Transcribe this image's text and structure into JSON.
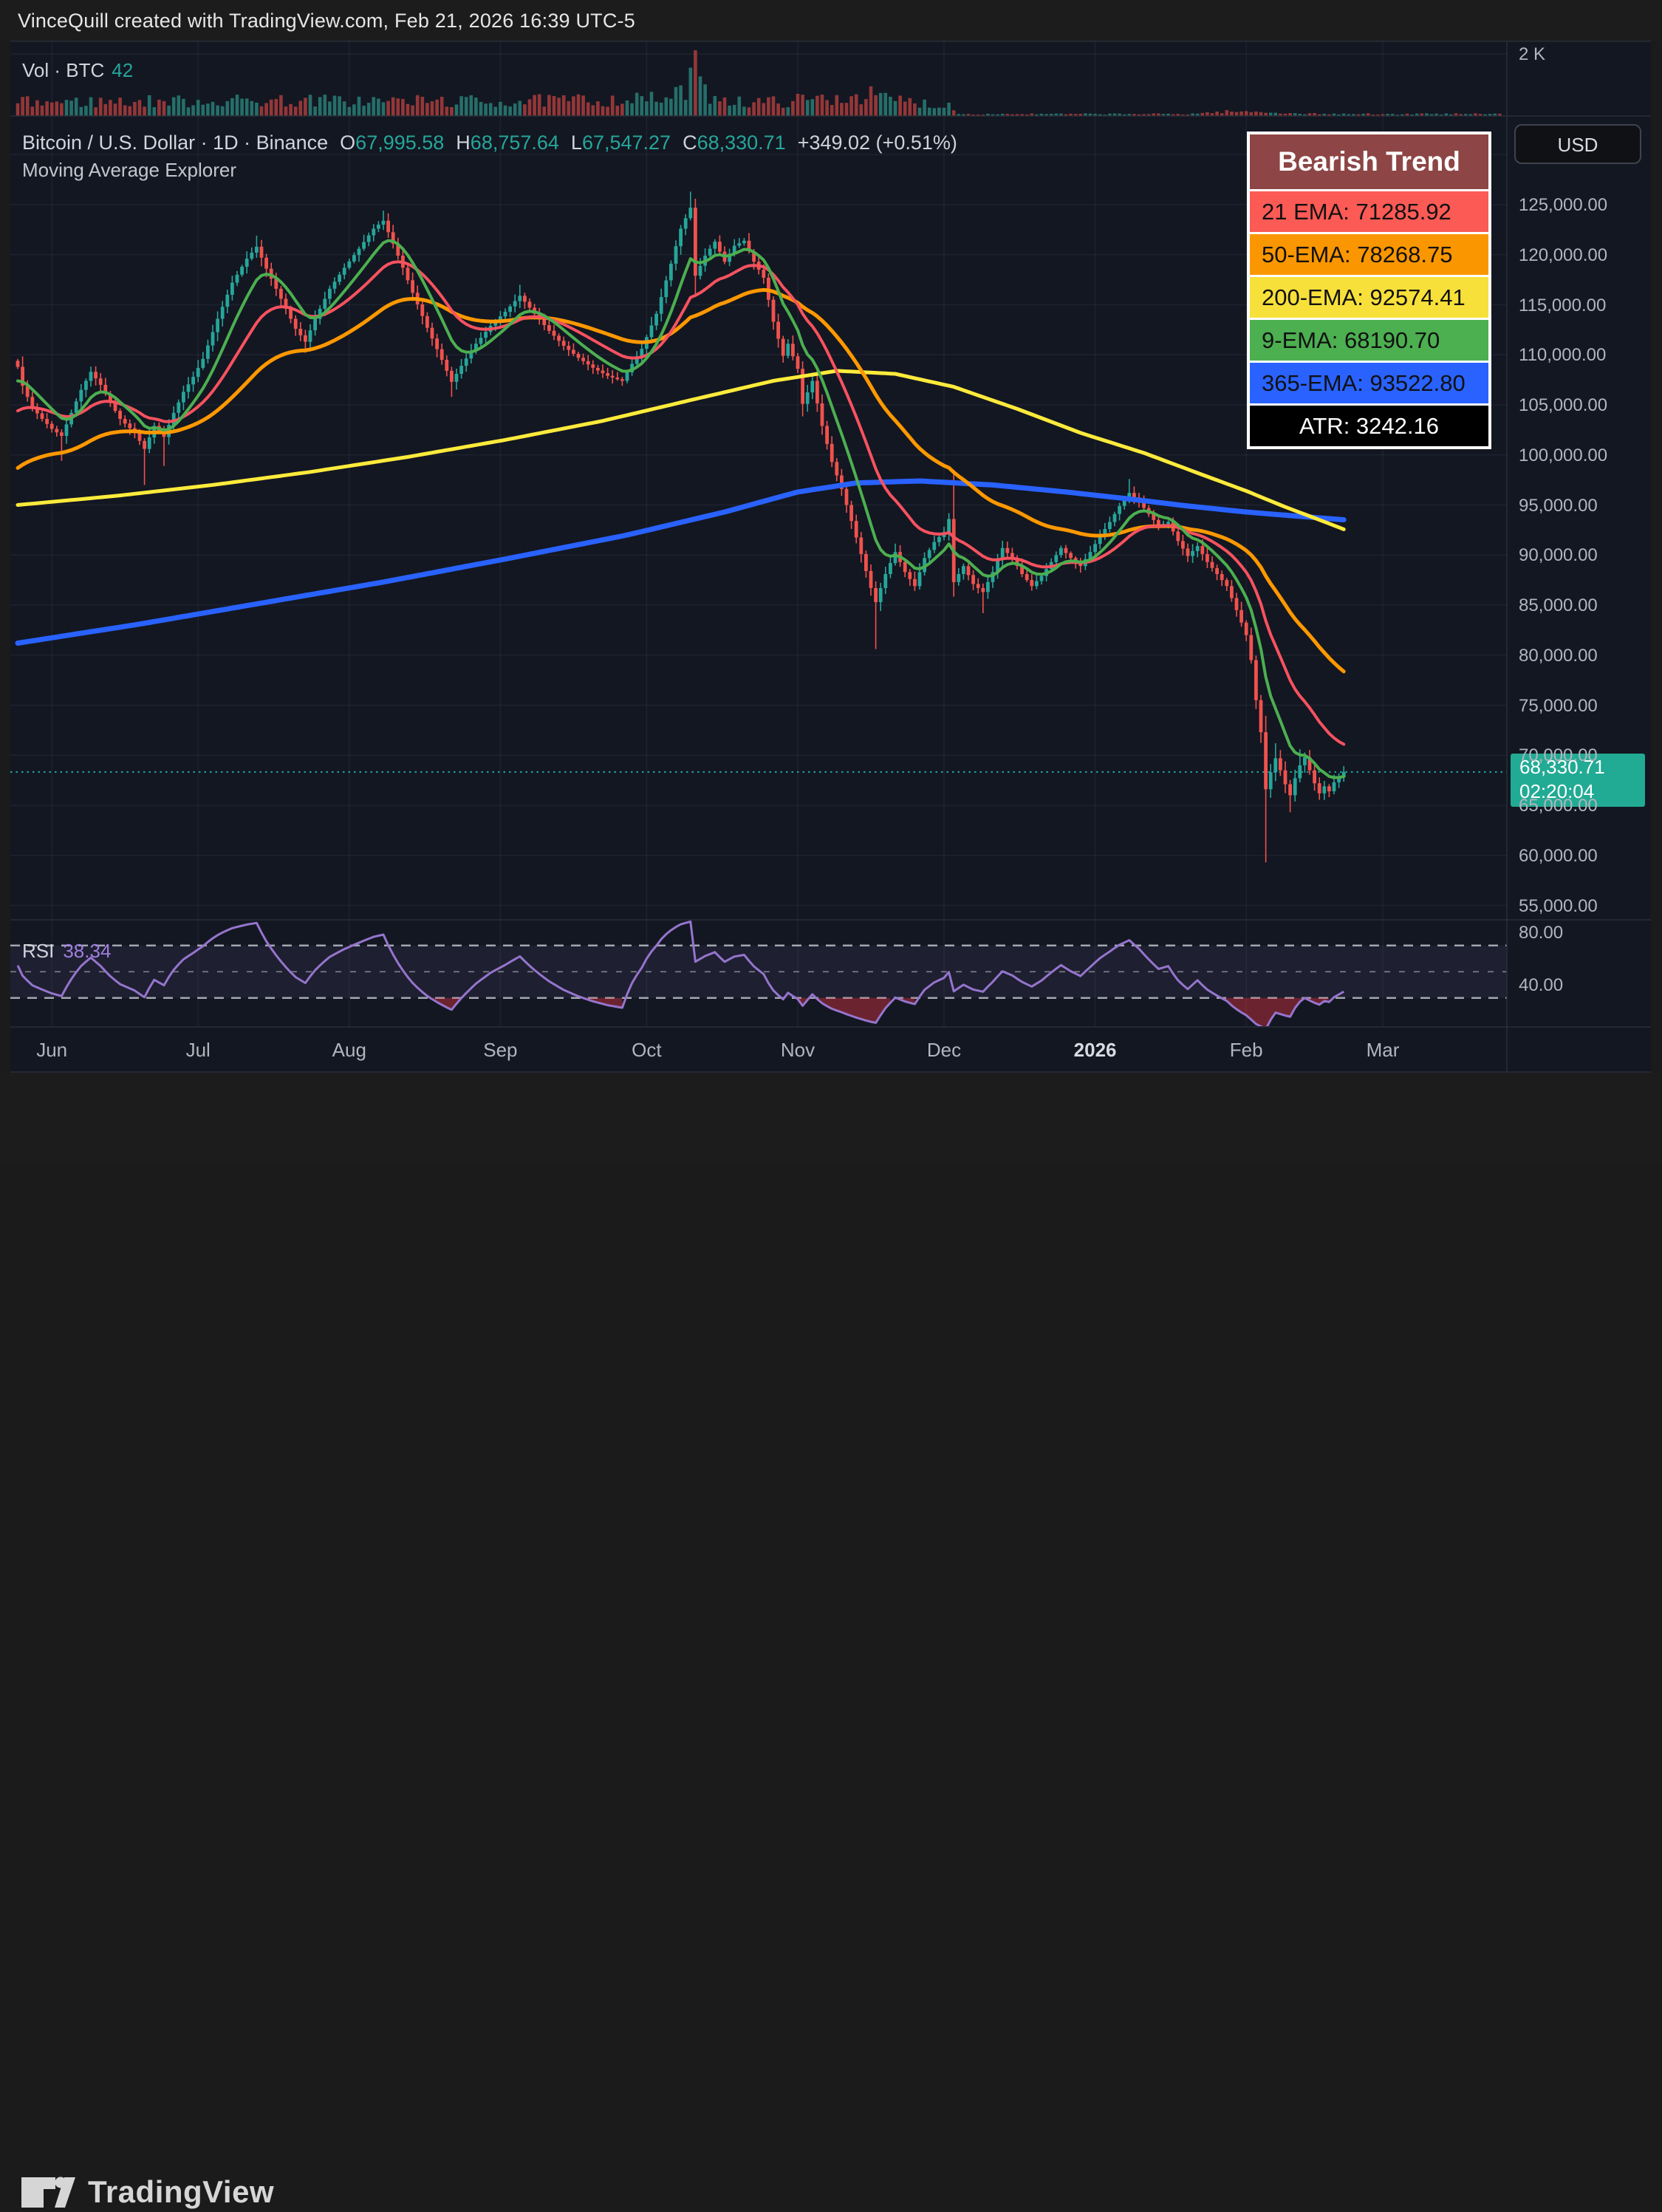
{
  "header": {
    "title": "VinceQuill created with TradingView.com, Feb 21, 2026 16:39 UTC-5"
  },
  "volume_pane": {
    "label": "Vol · BTC",
    "value": "42",
    "scale_label": "2 K"
  },
  "main_pane": {
    "title": "Bitcoin / U.S. Dollar · 1D · Binance",
    "ohlc": {
      "o_label": "O",
      "o": "67,995.58",
      "h_label": "H",
      "h": "68,757.64",
      "l_label": "L",
      "l": "67,547.27",
      "c_label": "C",
      "c": "68,330.71",
      "change": "+349.02 (+0.51%)"
    },
    "indicator_title": "Moving Average Explorer"
  },
  "legend_box": {
    "header": {
      "label": "Bearish Trend",
      "bg": "#8d4545",
      "fg": "#ffffff"
    },
    "rows": [
      {
        "label": "21 EMA: 71285.92",
        "bg": "#fb5a55",
        "fg": "#111111"
      },
      {
        "label": "50-EMA: 78268.75",
        "bg": "#fa9600",
        "fg": "#111111"
      },
      {
        "label": "200-EMA: 92574.41",
        "bg": "#f8e03a",
        "fg": "#111111"
      },
      {
        "label": "9-EMA: 68190.70",
        "bg": "#4caf50",
        "fg": "#111111"
      },
      {
        "label": "365-EMA: 93522.80",
        "bg": "#2962ff",
        "fg": "#111111"
      },
      {
        "label": "ATR: 3242.16",
        "bg": "#000000",
        "fg": "#ffffff"
      }
    ]
  },
  "price_axis": {
    "currency_button": "USD",
    "ticks": [
      {
        "text": "125,000.00",
        "value": 125000
      },
      {
        "text": "120,000.00",
        "value": 120000
      },
      {
        "text": "115,000.00",
        "value": 115000
      },
      {
        "text": "110,000.00",
        "value": 110000
      },
      {
        "text": "105,000.00",
        "value": 105000
      },
      {
        "text": "100,000.00",
        "value": 100000
      },
      {
        "text": "95,000.00",
        "value": 95000
      },
      {
        "text": "90,000.00",
        "value": 90000
      },
      {
        "text": "85,000.00",
        "value": 85000
      },
      {
        "text": "80,000.00",
        "value": 80000
      },
      {
        "text": "75,000.00",
        "value": 75000
      },
      {
        "text": "70,000.00",
        "value": 70000
      },
      {
        "text": "65,000.00",
        "value": 65000
      },
      {
        "text": "60,000.00",
        "value": 60000
      },
      {
        "text": "55,000.00",
        "value": 55000
      }
    ],
    "badge": {
      "price": "68,330.71",
      "time": "02:20:04"
    }
  },
  "rsi_pane": {
    "label": "RSI",
    "value": "38.34",
    "axis_labels": [
      {
        "text": "80.00",
        "value": 80
      },
      {
        "text": "40.00",
        "value": 40
      }
    ],
    "band_levels": [
      70,
      50,
      30
    ]
  },
  "time_axis": {
    "months": [
      {
        "label": "Jun",
        "day": 7
      },
      {
        "label": "Jul",
        "day": 37
      },
      {
        "label": "Aug",
        "day": 68
      },
      {
        "label": "Sep",
        "day": 99
      },
      {
        "label": "Oct",
        "day": 129
      },
      {
        "label": "Nov",
        "day": 160
      },
      {
        "label": "Dec",
        "day": 190
      },
      {
        "label": "2026",
        "day": 221,
        "bold": true
      },
      {
        "label": "Feb",
        "day": 252
      },
      {
        "label": "Mar",
        "day": 280
      }
    ]
  },
  "footer": {
    "brand": "TradingView"
  },
  "colors": {
    "chart_bg": "#131722",
    "frame_bg": "#1c1c1c",
    "border": "#2a2e39",
    "grid": "rgba(240,243,250,0.055)",
    "text": "#b2b5be",
    "text_bright": "#d1d4dc",
    "candle_up": "#26a69a",
    "candle_down": "#f0524d",
    "vol_up": "rgba(42,126,118,0.85)",
    "vol_down": "rgba(163,59,59,0.9)",
    "ema9": "#4caf50",
    "ema21": "#f7525f",
    "ema50": "#ff9800",
    "ema200": "#ffeb3b",
    "ema365": "#2962ff",
    "rsi_line": "#9575cd",
    "rsi_band": "rgba(149,117,205,0.09)",
    "rsi_dash": "rgba(210,213,222,0.75)",
    "rsi_oversold": "rgba(242,54,69,0.4)",
    "badge_bg": "#22ab94",
    "price_dotted": "#26a69a"
  },
  "chart_data": {
    "type": "candlestick",
    "title": "Bitcoin / U.S. Dollar · 1D · Binance",
    "timeframe": "1D",
    "exchange": "Binance",
    "last_close": 68330.71,
    "days_total": 272,
    "price_range_visible": [
      53850,
      133600
    ],
    "grid_price_step": 5000,
    "close_waypoints": [
      [
        0,
        108800
      ],
      [
        1,
        106900
      ],
      [
        3,
        104700
      ],
      [
        5,
        103600
      ],
      [
        7,
        102600
      ],
      [
        9,
        101900
      ],
      [
        11,
        104200
      ],
      [
        13,
        106500
      ],
      [
        15,
        108300
      ],
      [
        17,
        107000
      ],
      [
        19,
        105200
      ],
      [
        21,
        103600
      ],
      [
        24,
        102200
      ],
      [
        26,
        100600
      ],
      [
        28,
        102900
      ],
      [
        30,
        101800
      ],
      [
        32,
        104200
      ],
      [
        34,
        106300
      ],
      [
        36,
        107800
      ],
      [
        38,
        109600
      ],
      [
        41,
        113600
      ],
      [
        44,
        117200
      ],
      [
        47,
        119600
      ],
      [
        49,
        120800
      ],
      [
        51,
        118600
      ],
      [
        54,
        115600
      ],
      [
        57,
        112600
      ],
      [
        59,
        111300
      ],
      [
        61,
        113600
      ],
      [
        64,
        116600
      ],
      [
        67,
        118700
      ],
      [
        70,
        120600
      ],
      [
        73,
        122600
      ],
      [
        75,
        123400
      ],
      [
        77,
        121100
      ],
      [
        79,
        118700
      ],
      [
        81,
        116200
      ],
      [
        84,
        112700
      ],
      [
        87,
        109500
      ],
      [
        89,
        107300
      ],
      [
        91,
        108900
      ],
      [
        94,
        111100
      ],
      [
        97,
        112900
      ],
      [
        100,
        114300
      ],
      [
        103,
        115900
      ],
      [
        106,
        114100
      ],
      [
        109,
        112400
      ],
      [
        112,
        110900
      ],
      [
        115,
        109700
      ],
      [
        118,
        108700
      ],
      [
        121,
        107900
      ],
      [
        124,
        107400
      ],
      [
        126,
        109100
      ],
      [
        128,
        110600
      ],
      [
        131,
        114100
      ],
      [
        134,
        119100
      ],
      [
        136,
        122600
      ],
      [
        138,
        124700
      ],
      [
        139,
        117900
      ],
      [
        141,
        119900
      ],
      [
        143,
        121300
      ],
      [
        145,
        119300
      ],
      [
        147,
        120900
      ],
      [
        149,
        121400
      ],
      [
        151,
        119300
      ],
      [
        153,
        117700
      ],
      [
        155,
        113300
      ],
      [
        157,
        109900
      ],
      [
        158,
        111100
      ],
      [
        160,
        108600
      ],
      [
        161,
        105100
      ],
      [
        163,
        107400
      ],
      [
        165,
        102900
      ],
      [
        167,
        99300
      ],
      [
        169,
        96600
      ],
      [
        171,
        93400
      ],
      [
        173,
        90100
      ],
      [
        175,
        86700
      ],
      [
        176,
        85300
      ],
      [
        178,
        88100
      ],
      [
        180,
        90300
      ],
      [
        182,
        88300
      ],
      [
        184,
        86900
      ],
      [
        186,
        89700
      ],
      [
        188,
        91300
      ],
      [
        190,
        92300
      ],
      [
        191,
        93600
      ],
      [
        192,
        87300
      ],
      [
        194,
        88900
      ],
      [
        196,
        87100
      ],
      [
        198,
        86300
      ],
      [
        200,
        88300
      ],
      [
        202,
        90700
      ],
      [
        204,
        89700
      ],
      [
        206,
        88100
      ],
      [
        208,
        86900
      ],
      [
        210,
        87900
      ],
      [
        212,
        89300
      ],
      [
        214,
        90700
      ],
      [
        216,
        89700
      ],
      [
        218,
        88900
      ],
      [
        220,
        90300
      ],
      [
        222,
        91900
      ],
      [
        224,
        93300
      ],
      [
        226,
        94900
      ],
      [
        228,
        96200
      ],
      [
        230,
        95300
      ],
      [
        232,
        94100
      ],
      [
        234,
        92900
      ],
      [
        236,
        93300
      ],
      [
        238,
        91400
      ],
      [
        240,
        89900
      ],
      [
        242,
        90900
      ],
      [
        244,
        89300
      ],
      [
        246,
        88100
      ],
      [
        248,
        86900
      ],
      [
        250,
        84500
      ],
      [
        252,
        82000
      ],
      [
        253,
        79500
      ],
      [
        254,
        75500
      ],
      [
        255,
        72300
      ],
      [
        256,
        66600
      ],
      [
        257,
        68300
      ],
      [
        258,
        69700
      ],
      [
        259,
        68500
      ],
      [
        260,
        67100
      ],
      [
        261,
        66000
      ],
      [
        262,
        67700
      ],
      [
        263,
        69000
      ],
      [
        264,
        69800
      ],
      [
        265,
        68500
      ],
      [
        266,
        67200
      ],
      [
        267,
        66200
      ],
      [
        268,
        66900
      ],
      [
        269,
        66400
      ],
      [
        270,
        67300
      ],
      [
        271,
        67800
      ],
      [
        272,
        68330
      ]
    ],
    "wick_low_overrides": {
      "9": 99400,
      "26": 97000,
      "30": 98900,
      "59": 110200,
      "89": 105800,
      "124": 106900,
      "176": 80600,
      "198": 84200,
      "256": 59300,
      "261": 64300
    },
    "wick_high_overrides": {
      "49": 121900,
      "75": 124400,
      "103": 117000,
      "138": 126300,
      "192": 98500,
      "228": 97600,
      "258": 71200,
      "263": 70600
    },
    "ema_computed": {
      "ema9": {
        "period": 9,
        "seed": 107400,
        "last": 68190.7
      },
      "ema21": {
        "period": 21,
        "seed": 104400,
        "last": 71285.92
      },
      "ema50": {
        "period": 50,
        "seed": 98700,
        "last": 78268.75
      }
    },
    "ema200_waypoints": [
      [
        0,
        95000
      ],
      [
        20,
        95900
      ],
      [
        40,
        97000
      ],
      [
        60,
        98300
      ],
      [
        80,
        99800
      ],
      [
        100,
        101500
      ],
      [
        120,
        103400
      ],
      [
        140,
        105700
      ],
      [
        155,
        107400
      ],
      [
        168,
        108400
      ],
      [
        180,
        108100
      ],
      [
        192,
        106800
      ],
      [
        205,
        104600
      ],
      [
        218,
        102200
      ],
      [
        231,
        100200
      ],
      [
        242,
        98200
      ],
      [
        252,
        96400
      ],
      [
        260,
        94800
      ],
      [
        266,
        93700
      ],
      [
        272,
        92574
      ]
    ],
    "ema365_waypoints": [
      [
        0,
        81200
      ],
      [
        25,
        83100
      ],
      [
        50,
        85200
      ],
      [
        75,
        87300
      ],
      [
        100,
        89600
      ],
      [
        125,
        92000
      ],
      [
        145,
        94300
      ],
      [
        160,
        96300
      ],
      [
        172,
        97200
      ],
      [
        185,
        97400
      ],
      [
        200,
        97000
      ],
      [
        215,
        96300
      ],
      [
        228,
        95600
      ],
      [
        240,
        94900
      ],
      [
        252,
        94300
      ],
      [
        262,
        93900
      ],
      [
        272,
        93523
      ]
    ],
    "atr": 3242.16,
    "rsi": {
      "period": 14,
      "last": 38.34,
      "levels": [
        70,
        50,
        30
      ]
    },
    "volume_profile": [
      [
        0,
        30
      ],
      [
        50,
        34
      ],
      [
        100,
        32
      ],
      [
        134,
        38
      ],
      [
        137,
        60
      ],
      [
        139,
        100
      ],
      [
        140,
        62
      ],
      [
        142,
        48
      ],
      [
        150,
        28
      ],
      [
        168,
        40
      ],
      [
        174,
        48
      ],
      [
        178,
        38
      ],
      [
        186,
        28
      ],
      [
        192,
        22
      ],
      [
        193,
        4
      ],
      [
        240,
        4
      ],
      [
        248,
        9
      ],
      [
        256,
        8
      ],
      [
        262,
        5
      ],
      [
        272,
        4
      ],
      [
        304,
        3
      ]
    ],
    "volume_scale_top": "2 K",
    "seed": 7
  }
}
